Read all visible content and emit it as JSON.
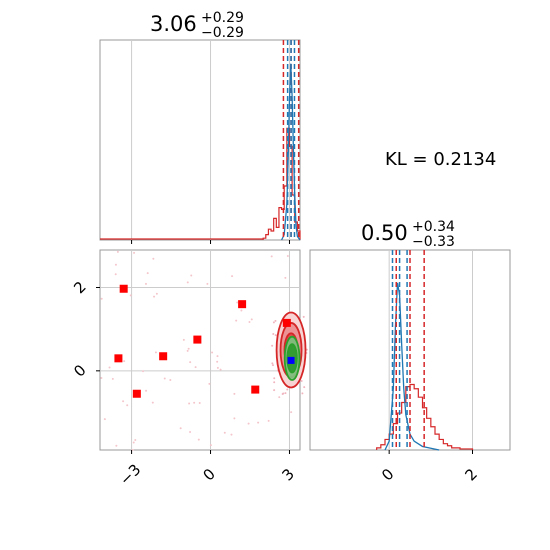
{
  "colors": {
    "red": "#d62728",
    "blue": "#1f77b4",
    "green": "#2ca02c",
    "marker_red": "#ff0000",
    "marker_blue": "#0000ff",
    "grid": "#cccccc",
    "spine": "#999999"
  },
  "kl_text": "KL = 0.2134",
  "chart_data": [
    {
      "type": "histogram",
      "panel": "param-0 marginal",
      "title_value": "3.06",
      "title_plus": "+0.29",
      "title_minus": "−0.29",
      "xlim": [
        -4.2,
        3.4
      ],
      "grid": true,
      "series": [
        {
          "color": "#d62728",
          "style": "step",
          "edges": [
            2.0,
            2.1,
            2.2,
            2.3,
            2.4,
            2.5,
            2.6,
            2.7,
            2.8,
            2.9,
            3.0,
            3.1,
            3.2,
            3.3,
            3.4
          ],
          "counts": [
            0.01,
            0.03,
            0.06,
            0.05,
            0.12,
            0.07,
            0.18,
            0.17,
            0.3,
            0.62,
            0.52,
            0.25,
            0.1,
            0.05
          ]
        },
        {
          "color": "#1f77b4",
          "style": "line",
          "x": [
            2.7,
            2.8,
            2.9,
            2.95,
            3.0,
            3.05,
            3.1,
            3.15,
            3.2,
            3.25,
            3.3,
            3.4
          ],
          "y": [
            0.0,
            0.03,
            0.2,
            0.45,
            0.78,
            0.98,
            0.8,
            0.5,
            0.25,
            0.08,
            0.02,
            0.0
          ]
        }
      ],
      "quantile_lines": [
        {
          "color": "#d62728",
          "x": [
            2.77,
            3.06,
            3.35
          ]
        },
        {
          "color": "#1f77b4",
          "x": [
            2.93,
            3.06,
            3.19
          ]
        }
      ]
    },
    {
      "type": "histogram",
      "panel": "param-1 marginal",
      "title_value": "0.50",
      "title_plus": "+0.34",
      "title_minus": "−0.33",
      "xlim": [
        -1.9,
        2.9
      ],
      "xticks": [
        0,
        2
      ],
      "xtick_labels": [
        "0",
        "2"
      ],
      "grid": true,
      "series": [
        {
          "color": "#d62728",
          "style": "step",
          "edges": [
            -0.3,
            -0.2,
            -0.1,
            0.0,
            0.1,
            0.2,
            0.3,
            0.4,
            0.5,
            0.6,
            0.7,
            0.8,
            0.9,
            1.0,
            1.1,
            1.2,
            1.3,
            1.4,
            1.5,
            1.6,
            1.7,
            1.8,
            1.9,
            2.0
          ],
          "counts": [
            0.02,
            0.05,
            0.1,
            0.15,
            0.25,
            0.35,
            0.45,
            0.6,
            0.62,
            0.58,
            0.5,
            0.4,
            0.3,
            0.22,
            0.15,
            0.1,
            0.06,
            0.04,
            0.02,
            0.02,
            0.01,
            0.01,
            0.01
          ]
        },
        {
          "color": "#1f77b4",
          "style": "line",
          "x": [
            -0.1,
            0.0,
            0.1,
            0.15,
            0.2,
            0.25,
            0.3,
            0.35,
            0.4,
            0.5,
            0.6,
            0.8,
            1.0,
            1.2
          ],
          "y": [
            0.0,
            0.05,
            0.35,
            0.7,
            0.95,
            0.88,
            0.6,
            0.35,
            0.2,
            0.09,
            0.05,
            0.02,
            0.01,
            0.0
          ]
        }
      ],
      "quantile_lines": [
        {
          "color": "#d62728",
          "x": [
            0.17,
            0.5,
            0.84
          ]
        },
        {
          "color": "#1f77b4",
          "x": [
            0.08,
            0.25,
            0.43
          ]
        }
      ]
    },
    {
      "type": "scatter",
      "panel": "joint",
      "xlim": [
        -4.2,
        3.4
      ],
      "ylim": [
        -1.9,
        2.9
      ],
      "xticks": [
        -3,
        0,
        3
      ],
      "xtick_labels": [
        "−3",
        "0",
        "3"
      ],
      "yticks": [
        0,
        2
      ],
      "ytick_labels": [
        "0",
        "2"
      ],
      "grid": true,
      "points": [
        {
          "x": -3.3,
          "y": 1.97
        },
        {
          "x": -3.5,
          "y": 0.3
        },
        {
          "x": -2.8,
          "y": -0.55
        },
        {
          "x": -1.8,
          "y": 0.35
        },
        {
          "x": -0.5,
          "y": 0.75
        },
        {
          "x": 1.2,
          "y": 1.6
        },
        {
          "x": 1.7,
          "y": -0.45
        },
        {
          "x": 2.9,
          "y": 1.15
        }
      ],
      "truth": {
        "x": 3.06,
        "y": 0.25
      },
      "contours": [
        {
          "color": "#d62728",
          "cx": 3.06,
          "cy": 0.5,
          "levels": [
            [
              0.55,
              0.9
            ],
            [
              0.4,
              0.65
            ],
            [
              0.25,
              0.4
            ]
          ]
        },
        {
          "color": "#2ca02c",
          "cx": 3.1,
          "cy": 0.3,
          "levels": [
            [
              0.28,
              0.52
            ],
            [
              0.18,
              0.34
            ]
          ]
        }
      ]
    }
  ]
}
